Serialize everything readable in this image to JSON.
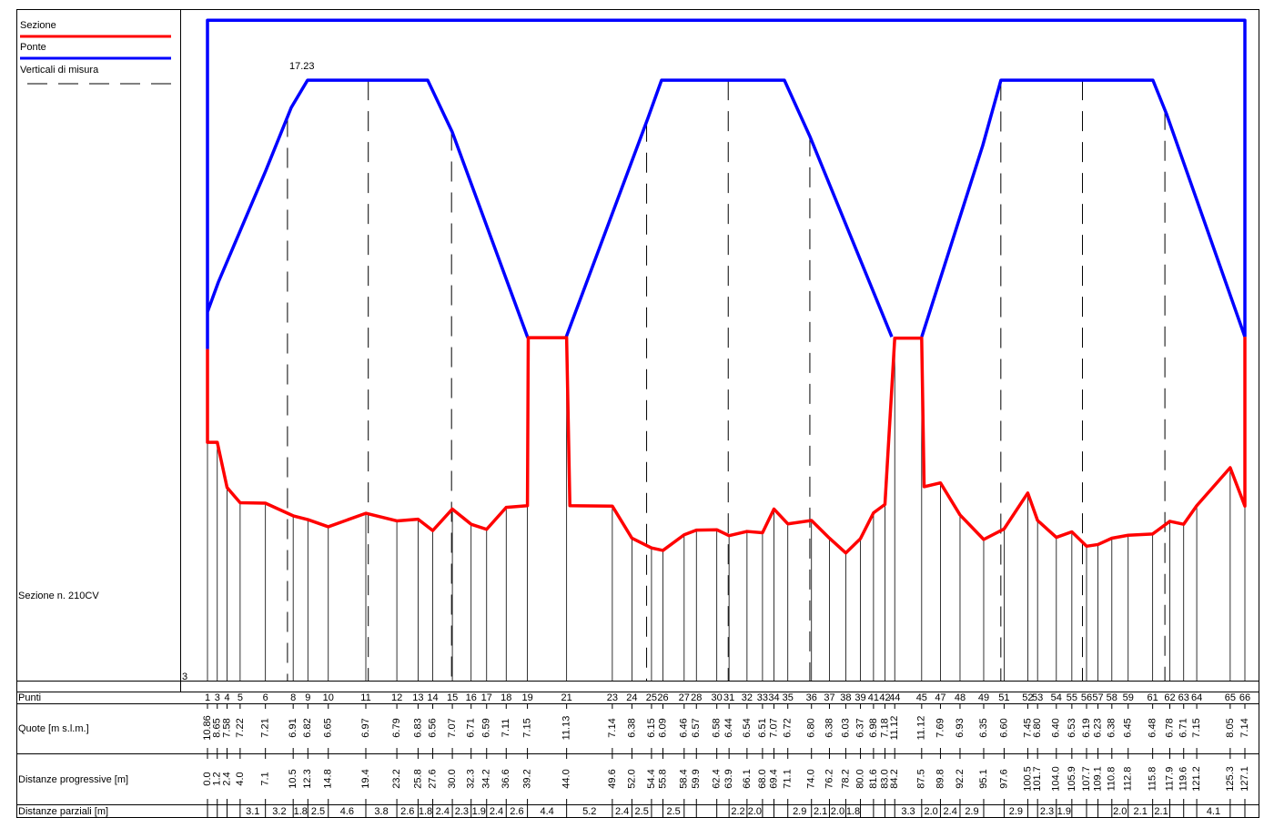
{
  "chart_data": {
    "type": "section",
    "title": "Sezione n. 210CV",
    "corner_label": "3",
    "annotation": "17.23",
    "xlim": [
      0,
      127.1
    ],
    "ylim": [
      4.5,
      19
    ],
    "series": [
      {
        "name": "Sezione",
        "color": "#ff0000",
        "x": [
          0,
          0,
          1.2,
          2.4,
          4.0,
          7.1,
          10.5,
          12.3,
          14.8,
          19.4,
          23.2,
          25.8,
          27.6,
          30.0,
          32.3,
          34.2,
          36.6,
          39.2,
          39.3,
          44.0,
          44.4,
          49.6,
          52.0,
          54.4,
          55.8,
          58.4,
          59.9,
          62.4,
          63.9,
          66.1,
          68.0,
          69.4,
          71.1,
          74.0,
          76.2,
          78.2,
          80.0,
          81.6,
          83.0,
          84.2,
          87.5,
          87.8,
          89.8,
          92.2,
          95.1,
          97.6,
          100.5,
          101.7,
          104.0,
          105.9,
          107.7,
          109.1,
          110.8,
          112.8,
          115.8,
          117.9,
          119.6,
          121.2,
          125.3,
          127.1,
          127.1
        ],
        "values": [
          10.86,
          8.65,
          8.65,
          7.58,
          7.22,
          7.21,
          6.91,
          6.82,
          6.65,
          6.97,
          6.79,
          6.83,
          6.56,
          7.07,
          6.71,
          6.59,
          7.11,
          7.15,
          11.13,
          11.13,
          7.15,
          7.14,
          6.38,
          6.15,
          6.09,
          6.46,
          6.57,
          6.58,
          6.44,
          6.54,
          6.51,
          7.07,
          6.72,
          6.8,
          6.38,
          6.03,
          6.37,
          6.98,
          7.18,
          11.12,
          11.12,
          7.6,
          7.69,
          6.93,
          6.35,
          6.6,
          7.45,
          6.8,
          6.4,
          6.53,
          6.19,
          6.23,
          6.38,
          6.45,
          6.48,
          6.78,
          6.71,
          7.15,
          8.05,
          7.14,
          11.15
        ]
      },
      {
        "name": "Ponte",
        "color": "#0000ff",
        "x": [
          0,
          0,
          127.1,
          127.1,
          null,
          0,
          1.34,
          7.13,
          10.26,
          12.26,
          26.98,
          29.99,
          39.24,
          null,
          43.92,
          53.96,
          55.63,
          70.68,
          73.8,
          83.84,
          null,
          87.51,
          94.98,
          97.21,
          115.83,
          117.5,
          127.1
        ],
        "values": [
          10.86,
          18.65,
          18.65,
          11.15,
          null,
          11.74,
          12.45,
          15.08,
          16.58,
          17.23,
          17.23,
          16.0,
          11.13,
          null,
          11.13,
          16.33,
          17.23,
          17.23,
          15.9,
          11.15,
          null,
          11.15,
          15.68,
          17.23,
          17.23,
          16.43,
          11.15
        ]
      },
      {
        "name": "Verticali di misura",
        "color": "#000000",
        "x": [
          9.8,
          19.7,
          29.9,
          53.8,
          63.8,
          73.8,
          97.2,
          107.2,
          117.3
        ]
      }
    ],
    "table": {
      "row_labels": [
        "Punti",
        "Quote [m s.l.m.]",
        "Distanze progressive [m]",
        "Distanze parziali [m]"
      ],
      "points": [
        "1",
        "3",
        "4",
        "5",
        "6",
        "8",
        "9",
        "10",
        "11",
        "12",
        "13",
        "14",
        "15",
        "16",
        "17",
        "18",
        "19",
        "21",
        "23",
        "24",
        "25",
        "26",
        "27",
        "28",
        "30",
        "31",
        "32",
        "33",
        "34",
        "35",
        "36",
        "37",
        "38",
        "39",
        "41",
        "42",
        "44",
        "45",
        "47",
        "48",
        "49",
        "51",
        "52",
        "53",
        "54",
        "55",
        "56",
        "57",
        "58",
        "59",
        "61",
        "62",
        "63",
        "64",
        "65",
        "66"
      ],
      "quotes": [
        "10.86",
        "8.65",
        "7.58",
        "7.22",
        "7.21",
        "6.91",
        "6.82",
        "6.65",
        "6.97",
        "6.79",
        "6.83",
        "6.56",
        "7.07",
        "6.71",
        "6.59",
        "7.11",
        "7.15",
        "11.13",
        "7.14",
        "6.38",
        "6.15",
        "6.09",
        "6.46",
        "6.57",
        "6.58",
        "6.44",
        "6.54",
        "6.51",
        "7.07",
        "6.72",
        "6.80",
        "6.38",
        "6.03",
        "6.37",
        "6.98",
        "7.18",
        "11.12",
        "11.12",
        "7.69",
        "6.93",
        "6.35",
        "6.60",
        "7.45",
        "6.80",
        "6.40",
        "6.53",
        "6.19",
        "6.23",
        "6.38",
        "6.45",
        "6.48",
        "6.78",
        "6.71",
        "7.15",
        "8.05",
        "7.14"
      ],
      "distances": [
        "0.0",
        "1.2",
        "2.4",
        "4.0",
        "7.1",
        "10.5",
        "12.3",
        "14.8",
        "19.4",
        "23.2",
        "25.8",
        "27.6",
        "30.0",
        "32.3",
        "34.2",
        "36.6",
        "39.2",
        "44.0",
        "49.6",
        "52.0",
        "54.4",
        "55.8",
        "58.4",
        "59.9",
        "62.4",
        "63.9",
        "66.1",
        "68.0",
        "69.4",
        "71.1",
        "74.0",
        "76.2",
        "78.2",
        "80.0",
        "81.6",
        "83.0",
        "84.2",
        "87.5",
        "89.8",
        "92.2",
        "95.1",
        "97.6",
        "100.5",
        "101.7",
        "104.0",
        "105.9",
        "107.7",
        "109.1",
        "110.8",
        "112.8",
        "115.8",
        "117.9",
        "119.6",
        "121.2",
        "125.3",
        "127.1"
      ],
      "partials": [
        null,
        null,
        null,
        "3.1",
        "3.2",
        "1.8",
        "2.5",
        "4.6",
        "3.8",
        "2.6",
        "1.8",
        "2.4",
        "2.3",
        "1.9",
        "2.4",
        "2.6",
        "4.4",
        "5.2",
        "2.4",
        "2.5",
        null,
        "2.5",
        null,
        null,
        null,
        "2.2",
        "2.0",
        null,
        null,
        "2.9",
        "2.1",
        "2.0",
        "1.8",
        null,
        null,
        null,
        "3.3",
        "2.0",
        "2.4",
        "2.9",
        null,
        "2.9",
        null,
        "2.3",
        "1.9",
        null,
        null,
        null,
        "2.0",
        "2.1",
        "2.1",
        null,
        null,
        "4.1",
        null
      ]
    }
  }
}
